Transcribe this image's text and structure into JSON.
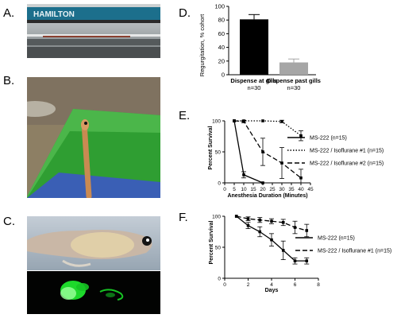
{
  "panels": {
    "A": {
      "label": "A.",
      "brand_text": "HAMILTON"
    },
    "B": {
      "label": "B."
    },
    "C": {
      "label": "C."
    },
    "D": {
      "label": "D."
    },
    "E": {
      "label": "E."
    },
    "F": {
      "label": "F."
    }
  },
  "colors": {
    "bar_gills": "#000000",
    "bar_past": "#a6a6a6",
    "sponge": "#2f9e32",
    "sponge_base": "#3a5fb5",
    "fluorescence": "#22ff33"
  },
  "chart_data": [
    {
      "id": "D",
      "type": "bar",
      "categories": [
        "Dispense at gills",
        "Dispense past gills"
      ],
      "category_sublabels": [
        "n=30",
        "n=30"
      ],
      "values": [
        81,
        18
      ],
      "errors": [
        7,
        5
      ],
      "ylabel": "Regurgitation, % cohort",
      "ylim": [
        0,
        100
      ],
      "yticks": [
        "0",
        "20",
        "40",
        "60",
        "80",
        "100"
      ]
    },
    {
      "id": "E",
      "type": "line",
      "xlabel": "Anesthesia Duration (Minutes)",
      "ylabel": "Percent Survival",
      "xlim": [
        0,
        45
      ],
      "ylim": [
        0,
        100
      ],
      "xticks": [
        "0",
        "5",
        "10",
        "15",
        "20",
        "25",
        "30",
        "35",
        "40",
        "45"
      ],
      "yticks": [
        "0",
        "50",
        "100"
      ],
      "legend_position": "right",
      "series": [
        {
          "name": "MS-222 (n=15)",
          "style": "solid",
          "x": [
            5,
            10,
            20
          ],
          "y": [
            100,
            13,
            0
          ],
          "err": [
            0,
            5,
            0
          ]
        },
        {
          "name": "MS-222 / Isoflurane #1 (n=15)",
          "style": "dotted",
          "x": [
            5,
            10,
            20,
            30,
            40
          ],
          "y": [
            100,
            100,
            100,
            99,
            76
          ],
          "err": [
            0,
            0,
            0,
            2,
            8
          ]
        },
        {
          "name": "MS-222 / Isoflurane #2 (n=15)",
          "style": "dashed",
          "x": [
            5,
            10,
            20,
            30,
            40
          ],
          "y": [
            100,
            99,
            50,
            32,
            8
          ],
          "err": [
            0,
            2,
            22,
            25,
            14
          ]
        }
      ]
    },
    {
      "id": "F",
      "type": "line",
      "xlabel": "Days",
      "ylabel": "Percent Survival",
      "xlim": [
        0,
        8
      ],
      "ylim": [
        0,
        100
      ],
      "xticks": [
        "0",
        "2",
        "4",
        "6",
        "8"
      ],
      "yticks": [
        "0",
        "50",
        "100"
      ],
      "legend_position": "right",
      "series": [
        {
          "name": "MS-222 (n=15)",
          "style": "solid",
          "x": [
            1,
            2,
            3,
            4,
            5,
            6,
            7
          ],
          "y": [
            100,
            85,
            75,
            62,
            45,
            28,
            28
          ],
          "err": [
            0,
            5,
            8,
            10,
            15,
            5,
            5
          ]
        },
        {
          "name": "MS-222 / Isoflurane #1 (n=15)",
          "style": "dashed",
          "x": [
            1,
            2,
            3,
            4,
            5,
            6,
            7
          ],
          "y": [
            100,
            96,
            94,
            92,
            90,
            82,
            77
          ],
          "err": [
            0,
            3,
            4,
            4,
            5,
            10,
            10
          ]
        }
      ]
    }
  ]
}
